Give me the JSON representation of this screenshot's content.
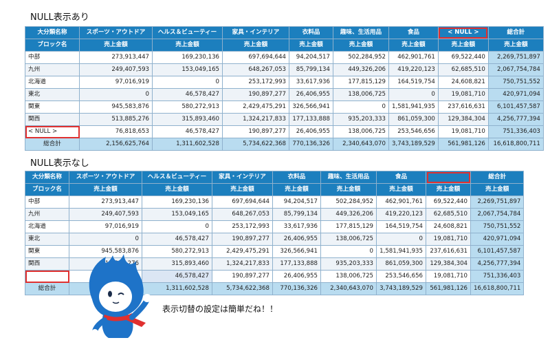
{
  "section1": {
    "title": "NULL表示あり"
  },
  "section2": {
    "title": "NULL表示なし"
  },
  "headers": {
    "corner_top": "大分類名称",
    "corner_bottom": "ブロック名",
    "cats": [
      "スポーツ・アウトドア",
      "ヘルス＆ビューティー",
      "家具・インテリア",
      "衣料品",
      "趣味、生活用品",
      "食品"
    ],
    "null_cat_with": "< NULL >",
    "null_cat_without": "",
    "total": "総合計",
    "measure": "売上金額"
  },
  "table1": {
    "rows": [
      {
        "label": "中部",
        "values": [
          "273,913,447",
          "169,230,136",
          "697,694,644",
          "94,204,517",
          "502,284,952",
          "462,901,761",
          "69,522,440",
          "2,269,751,897"
        ]
      },
      {
        "label": "九州",
        "values": [
          "249,407,593",
          "153,049,165",
          "648,267,053",
          "85,799,134",
          "449,326,206",
          "419,220,123",
          "62,685,510",
          "2,067,754,784"
        ]
      },
      {
        "label": "北海道",
        "values": [
          "97,016,919",
          "0",
          "253,172,993",
          "33,617,936",
          "177,815,129",
          "164,519,754",
          "24,608,821",
          "750,751,552"
        ]
      },
      {
        "label": "東北",
        "values": [
          "0",
          "46,578,427",
          "190,897,277",
          "26,406,955",
          "138,006,725",
          "0",
          "19,081,710",
          "420,971,094"
        ]
      },
      {
        "label": "関東",
        "values": [
          "945,583,876",
          "580,272,913",
          "2,429,475,291",
          "326,566,941",
          "0",
          "1,581,941,935",
          "237,616,631",
          "6,101,457,587"
        ]
      },
      {
        "label": "関西",
        "values": [
          "513,885,276",
          "315,893,460",
          "1,324,217,833",
          "177,133,888",
          "935,203,333",
          "861,059,300",
          "129,384,304",
          "4,256,777,394"
        ]
      },
      {
        "label": "< NULL >",
        "values": [
          "76,818,653",
          "46,578,427",
          "190,897,277",
          "26,406,955",
          "138,006,725",
          "253,546,656",
          "19,081,710",
          "751,336,403"
        ]
      }
    ],
    "total": {
      "label": "総合計",
      "values": [
        "2,156,625,764",
        "1,311,602,528",
        "5,734,622,368",
        "770,136,326",
        "2,340,643,070",
        "3,743,189,529",
        "561,981,126",
        "16,618,800,711"
      ]
    }
  },
  "table2": {
    "rows": [
      {
        "label": "中部",
        "values": [
          "273,913,447",
          "169,230,136",
          "697,694,644",
          "94,204,517",
          "502,284,952",
          "462,901,761",
          "69,522,440",
          "2,269,751,897"
        ]
      },
      {
        "label": "九州",
        "values": [
          "249,407,593",
          "153,049,165",
          "648,267,053",
          "85,799,134",
          "449,326,206",
          "419,220,123",
          "62,685,510",
          "2,067,754,784"
        ]
      },
      {
        "label": "北海道",
        "values": [
          "97,016,919",
          "0",
          "253,172,993",
          "33,617,936",
          "177,815,129",
          "164,519,754",
          "24,608,821",
          "750,751,552"
        ]
      },
      {
        "label": "東北",
        "values": [
          "0",
          "46,578,427",
          "190,897,277",
          "26,406,955",
          "138,006,725",
          "0",
          "19,081,710",
          "420,971,094"
        ]
      },
      {
        "label": "関東",
        "values": [
          "945,583,876",
          "580,272,913",
          "2,429,475,291",
          "326,566,941",
          "0",
          "1,581,941,935",
          "237,616,631",
          "6,101,457,587"
        ]
      },
      {
        "label": "関西",
        "values": [
          "513,885,276",
          "315,893,460",
          "1,324,217,833",
          "177,133,888",
          "935,203,333",
          "861,059,300",
          "129,384,304",
          "4,256,777,394"
        ]
      },
      {
        "label": "",
        "values": [
          "",
          "46,578,427",
          "190,897,277",
          "26,406,955",
          "138,006,725",
          "253,546,656",
          "19,081,710",
          "751,336,403"
        ]
      }
    ],
    "total": {
      "label": "総合計",
      "values": [
        "",
        "1,311,602,528",
        "5,734,622,368",
        "770,136,326",
        "2,340,643,070",
        "3,743,189,529",
        "561,981,126",
        "16,618,800,711"
      ]
    }
  },
  "caption": "表示切替の設定は簡単だね！！",
  "colors": {
    "header": "#1c7fbe",
    "total": "#b9dcf0",
    "highlight": "#e0302f",
    "mascot": "#1e73c8"
  }
}
